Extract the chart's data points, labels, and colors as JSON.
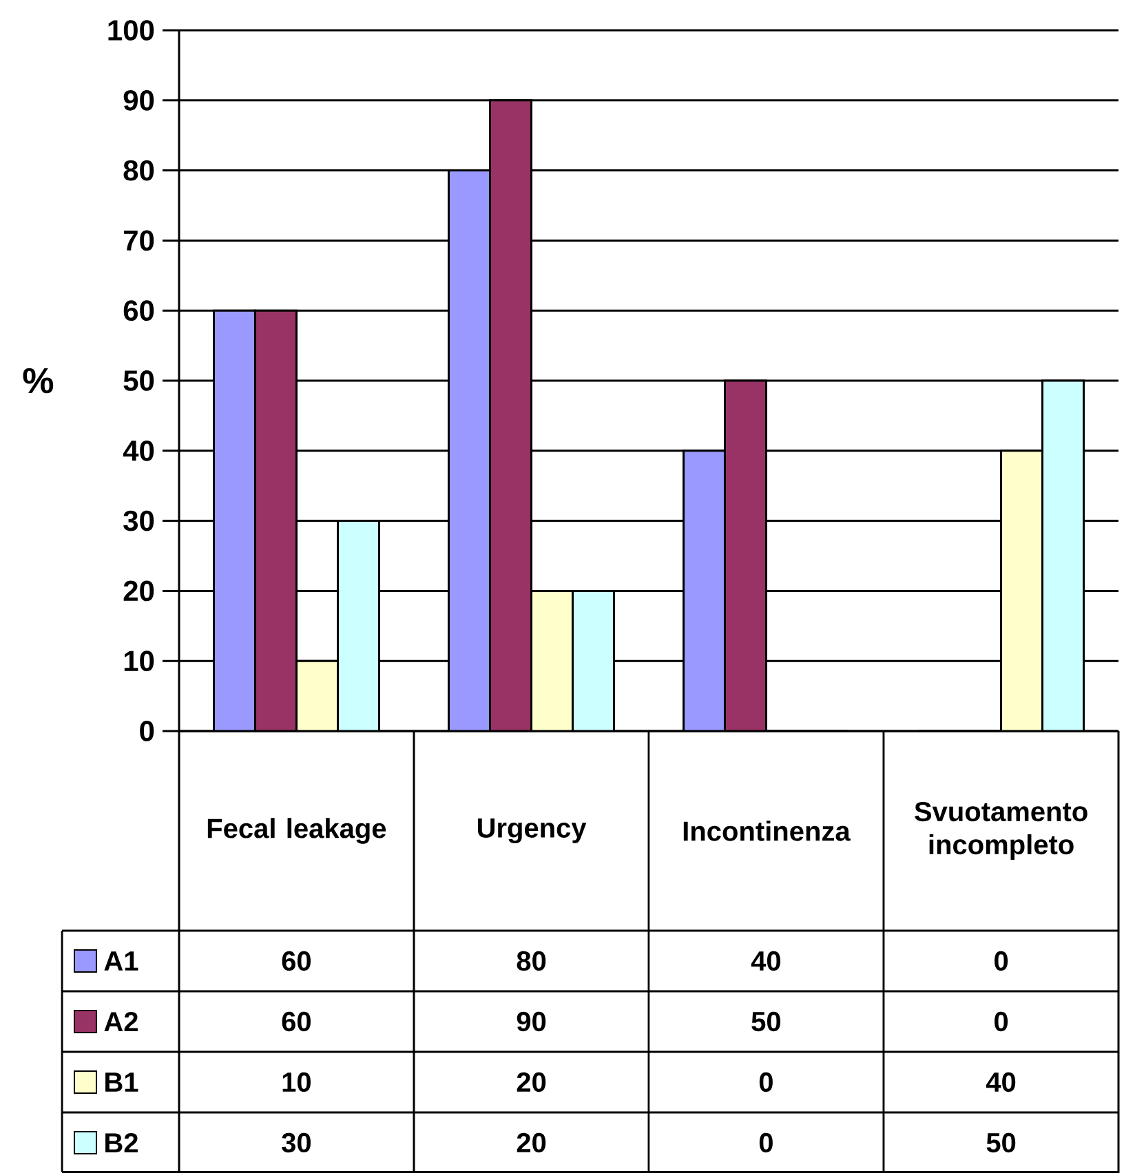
{
  "chart_data": {
    "type": "bar",
    "ylabel": "%",
    "categories": [
      "Fecal leakage",
      "Urgency",
      "Incontinenza",
      "Svuotamento incompleto"
    ],
    "series": [
      {
        "name": "A1",
        "color": "#9999ff",
        "values": [
          60,
          80,
          40,
          0
        ]
      },
      {
        "name": "A2",
        "color": "#993366",
        "values": [
          60,
          90,
          50,
          0
        ]
      },
      {
        "name": "B1",
        "color": "#ffffcc",
        "values": [
          10,
          20,
          0,
          40
        ]
      },
      {
        "name": "B2",
        "color": "#ccffff",
        "values": [
          30,
          20,
          0,
          50
        ]
      }
    ],
    "ylim": [
      0,
      100
    ],
    "yticks": [
      0,
      10,
      20,
      30,
      40,
      50,
      60,
      70,
      80,
      90,
      100
    ],
    "grid": "y",
    "legend": "bottom",
    "data_labels": true
  }
}
